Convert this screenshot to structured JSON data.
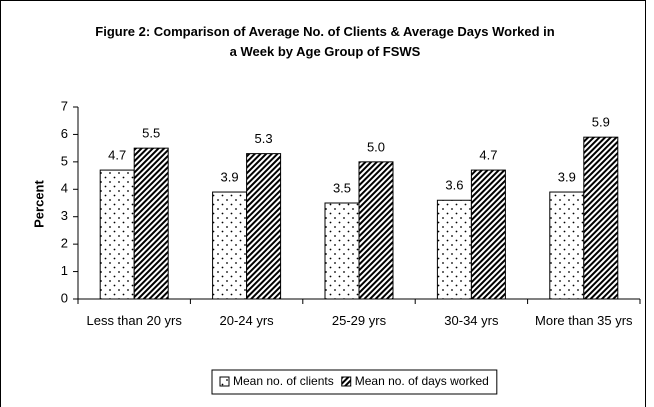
{
  "chart_data": {
    "type": "bar",
    "title": "Figure 2: Comparison of Average No. of Clients & Average Days Worked in a Week by Age Group of FSWS",
    "ylabel": "Percent",
    "categories": [
      "Less than 20 yrs",
      "20-24 yrs",
      "25-29 yrs",
      "30-34 yrs",
      "More than 35 yrs"
    ],
    "series": [
      {
        "name": "Mean no. of clients",
        "color": "#000000",
        "pattern": "dots",
        "values": [
          4.7,
          3.9,
          3.5,
          3.6,
          3.9
        ]
      },
      {
        "name": "Mean no. of days worked",
        "color": "#000000",
        "pattern": "hatch",
        "values": [
          5.5,
          5.3,
          5.0,
          4.7,
          5.9
        ],
        "value_labels": [
          "5.5",
          "5.3",
          "5.0",
          "4.7",
          "5.9"
        ]
      }
    ],
    "ylim": [
      0,
      7
    ],
    "yticks": [
      0,
      1,
      2,
      3,
      4,
      5,
      6,
      7
    ],
    "grid": false,
    "legend": "bottom"
  }
}
